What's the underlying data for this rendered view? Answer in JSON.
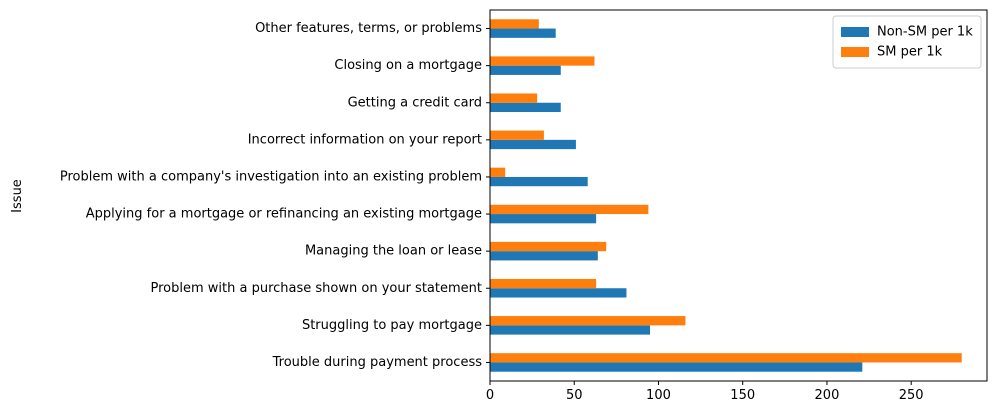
{
  "chart_data": {
    "type": "bar",
    "orientation": "horizontal",
    "title": "",
    "xlabel": "",
    "ylabel": "Issue",
    "xlim": [
      0,
      295
    ],
    "xticks": [
      0,
      50,
      100,
      150,
      200,
      250
    ],
    "grid": false,
    "legend_position": "top-right",
    "categories": [
      "Trouble during payment process",
      "Struggling to pay mortgage",
      "Problem with a purchase shown on your statement",
      "Managing the loan or lease",
      "Applying for a mortgage or refinancing an existing mortgage",
      "Problem with a company's investigation into an existing problem",
      "Incorrect information on your report",
      "Getting a credit card",
      "Closing on a mortgage",
      "Other features, terms, or problems"
    ],
    "series": [
      {
        "name": "Non-SM per 1k",
        "color": "#1f77b4",
        "values": [
          221,
          95,
          81,
          64,
          63,
          58,
          51,
          42,
          42,
          39
        ]
      },
      {
        "name": "SM per 1k",
        "color": "#ff7f0e",
        "values": [
          280,
          116,
          63,
          69,
          94,
          9,
          32,
          28,
          62,
          29
        ]
      }
    ]
  }
}
